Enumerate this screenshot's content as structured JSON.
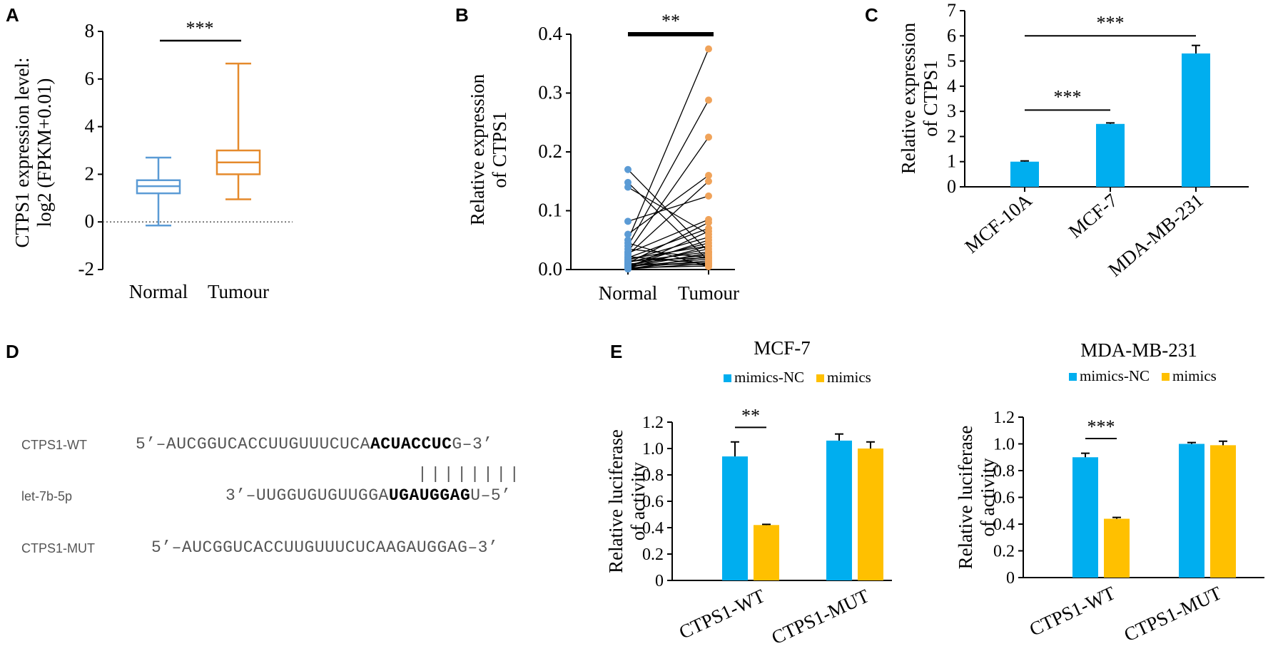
{
  "colors": {
    "normal_box": "#5b9bd5",
    "tumour_box": "#e58a2c",
    "normal_dot": "#5b9bd5",
    "tumour_dot": "#f0a35a",
    "blue_bar": "#00aeef",
    "yellow_bar": "#ffc000",
    "ink": "#000000"
  },
  "panels": {
    "A": {
      "letter": "A"
    },
    "B": {
      "letter": "B"
    },
    "C": {
      "letter": "C"
    },
    "D": {
      "letter": "D"
    },
    "E": {
      "letter": "E"
    }
  },
  "sequences": {
    "rows": [
      {
        "label": "CTPS1-WT",
        "prefix": "5’–AUCGGUCACCUUGUUUCUCA",
        "bold": "ACUACCUC",
        "suffix": "G–3’"
      },
      {
        "label": "let-7b-5p",
        "prefix": "3’–UUGGUGUGUUGGA",
        "bold": "UGAUGGAG",
        "suffix": "U–5’"
      },
      {
        "label": "CTPS1-MUT",
        "prefix": "5’–AUCGGUCACCUUGUUUCUCAAGAUGGAG–3’",
        "bold": "",
        "suffix": ""
      }
    ],
    "pairing": "||||||||"
  },
  "chart_data": [
    {
      "panel": "A",
      "type": "box",
      "categories": [
        "Normal",
        "Tumour"
      ],
      "ylabel": [
        "CTPS1 expression level:",
        "log2 (FPKM+0.01)"
      ],
      "ylim": [
        -2,
        8
      ],
      "yticks": [
        -2,
        0,
        2,
        4,
        6,
        8
      ],
      "boxes": [
        {
          "category": "Normal",
          "min": -0.15,
          "q1": 1.2,
          "median": 1.5,
          "q3": 1.75,
          "max": 2.7
        },
        {
          "category": "Tumour",
          "min": 0.95,
          "q1": 2.0,
          "median": 2.5,
          "q3": 3.0,
          "max": 6.65
        }
      ],
      "reference_line": 0,
      "significance": [
        {
          "from": "Normal",
          "to": "Tumour",
          "label": "***",
          "y": 7.7
        }
      ]
    },
    {
      "panel": "B",
      "type": "scatter",
      "categories": [
        "Normal",
        "Tumour"
      ],
      "ylabel": [
        "Relative expression",
        "of CTPS1"
      ],
      "ylim": [
        0,
        0.4
      ],
      "yticks": [
        "0.0",
        "0.1",
        "0.2",
        "0.3",
        "0.4"
      ],
      "pairs": [
        [
          0.17,
          0.03
        ],
        [
          0.148,
          0.015
        ],
        [
          0.14,
          0.06
        ],
        [
          0.082,
          0.125
        ],
        [
          0.06,
          0.16
        ],
        [
          0.05,
          0.375
        ],
        [
          0.045,
          0.005
        ],
        [
          0.04,
          0.288
        ],
        [
          0.035,
          0.02
        ],
        [
          0.03,
          0.225
        ],
        [
          0.028,
          0.085
        ],
        [
          0.025,
          0.15
        ],
        [
          0.022,
          0.01
        ],
        [
          0.02,
          0.07
        ],
        [
          0.018,
          0.04
        ],
        [
          0.016,
          0.055
        ],
        [
          0.015,
          0.02
        ],
        [
          0.013,
          0.03
        ],
        [
          0.012,
          0.045
        ],
        [
          0.011,
          0.08
        ],
        [
          0.01,
          0.008
        ],
        [
          0.009,
          0.025
        ],
        [
          0.008,
          0.035
        ],
        [
          0.007,
          0.012
        ],
        [
          0.006,
          0.05
        ],
        [
          0.005,
          0.018
        ],
        [
          0.004,
          0.028
        ],
        [
          0.003,
          0.006
        ],
        [
          0.003,
          0.065
        ],
        [
          0.002,
          0.015
        ],
        [
          0.002,
          0.04
        ],
        [
          0.001,
          0.022
        ],
        [
          0.001,
          0.01
        ]
      ],
      "significance": [
        {
          "from": "Normal",
          "to": "Tumour",
          "label": "**",
          "y": 0.4
        }
      ]
    },
    {
      "panel": "C",
      "type": "bar",
      "categories": [
        "MCF-10A",
        "MCF-7",
        "MDA-MB-231"
      ],
      "values": [
        1.0,
        2.5,
        5.3
      ],
      "errors": [
        0.03,
        0.04,
        0.32
      ],
      "ylabel": [
        "Relative expression",
        "of CTPS1"
      ],
      "ylim": [
        0,
        7
      ],
      "yticks": [
        0,
        1,
        2,
        3,
        4,
        5,
        6,
        7
      ],
      "significance": [
        {
          "from": 0,
          "to": 1,
          "label": "***",
          "y": 3.05
        },
        {
          "from": 0,
          "to": 2,
          "label": "***",
          "y": 6.0
        }
      ]
    },
    {
      "panel": "E",
      "type": "bar",
      "title": "MCF-7",
      "categories": [
        "CTPS1-WT",
        "CTPS1-MUT"
      ],
      "series": [
        {
          "name": "mimics-NC",
          "values": [
            0.94,
            1.06
          ],
          "errors": [
            0.11,
            0.05
          ]
        },
        {
          "name": "mimics",
          "values": [
            0.42,
            1.0
          ],
          "errors": [
            0.005,
            0.05
          ]
        }
      ],
      "ylabel": [
        "Relative luciferase",
        "of activity"
      ],
      "ylim": [
        0,
        1.2
      ],
      "yticks": [
        "0",
        "0.2",
        "0.4",
        "0.6",
        "0.8",
        "1.0",
        "1.2"
      ],
      "legend": "top",
      "significance": [
        {
          "category": 0,
          "label": "**",
          "y": 1.16
        }
      ]
    },
    {
      "panel": "E",
      "type": "bar",
      "title": "MDA-MB-231",
      "categories": [
        "CTPS1-WT",
        "CTPS1-MUT"
      ],
      "series": [
        {
          "name": "mimics-NC",
          "values": [
            0.9,
            1.0
          ],
          "errors": [
            0.03,
            0.01
          ]
        },
        {
          "name": "mimics",
          "values": [
            0.44,
            0.99
          ],
          "errors": [
            0.01,
            0.03
          ]
        }
      ],
      "ylabel": [
        "Relative luciferase",
        "of activity"
      ],
      "ylim": [
        0,
        1.2
      ],
      "yticks": [
        "0",
        "0.2",
        "0.4",
        "0.6",
        "0.8",
        "1.0",
        "1.2"
      ],
      "legend": "top",
      "significance": [
        {
          "category": 0,
          "label": "***",
          "y": 1.04
        }
      ]
    }
  ]
}
